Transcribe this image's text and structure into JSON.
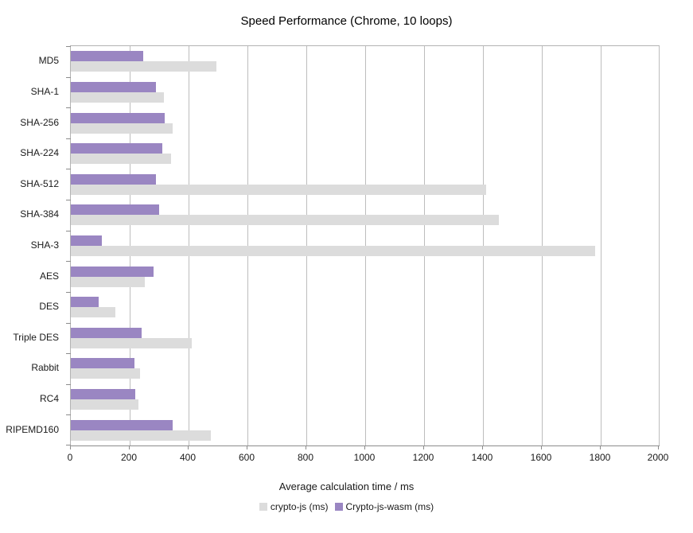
{
  "chart_data": {
    "type": "bar",
    "orientation": "horizontal",
    "title": "Speed Performance (Chrome, 10 loops)",
    "categories": [
      "MD5",
      "SHA-1",
      "SHA-256",
      "SHA-224",
      "SHA-512",
      "SHA-384",
      "SHA-3",
      "AES",
      "DES",
      "Triple DES",
      "Rabbit",
      "RC4",
      "RIPEMD160"
    ],
    "series": [
      {
        "name": "crypto-js (ms)",
        "color": "#dcdcdc",
        "values": [
          495,
          315,
          345,
          340,
          1410,
          1455,
          1780,
          250,
          150,
          410,
          235,
          230,
          475
        ]
      },
      {
        "name": "Crypto-js-wasm (ms)",
        "color": "#9a86c2",
        "values": [
          245,
          290,
          320,
          310,
          290,
          300,
          105,
          280,
          95,
          240,
          215,
          220,
          345
        ]
      }
    ],
    "series_draw_order": [
      1,
      0
    ],
    "xlabel": "Average calculation time / ms",
    "xlim": [
      0,
      2000
    ],
    "x_ticks": [
      0,
      200,
      400,
      600,
      800,
      1000,
      1200,
      1400,
      1600,
      1800,
      2000
    ],
    "grid": true,
    "legend_position": "bottom"
  }
}
